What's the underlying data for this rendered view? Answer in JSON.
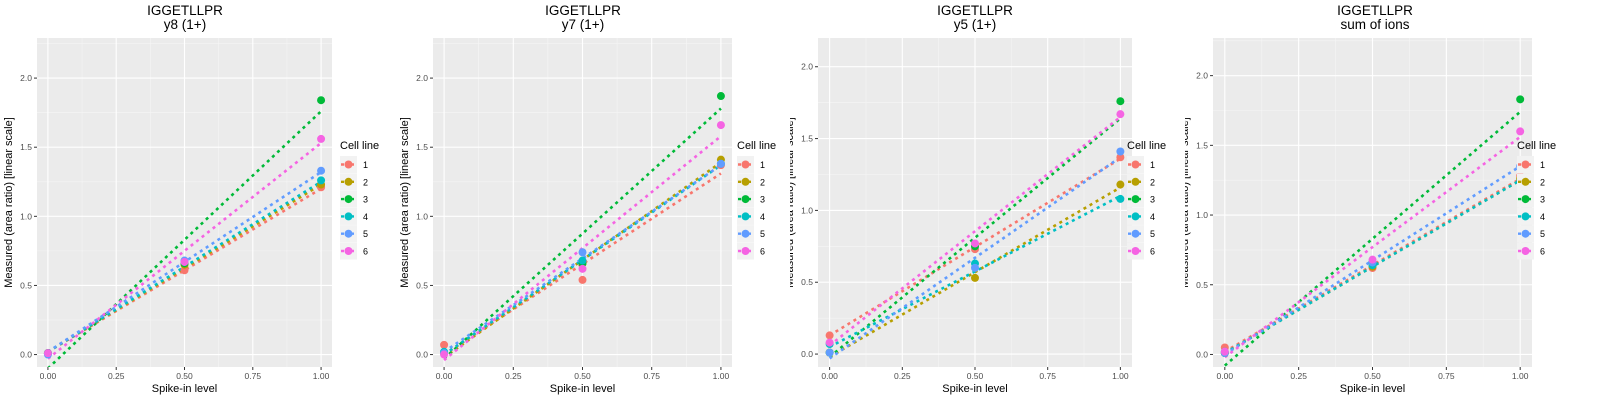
{
  "colors": {
    "panel_bg": "#EBEBEB",
    "grid_major": "#FFFFFF",
    "grid_minor": "#F5F5F5",
    "series": [
      "#F8766D",
      "#B79F00",
      "#00BA38",
      "#00BFC4",
      "#619CFF",
      "#F564E3"
    ]
  },
  "chart_data": [
    {
      "type": "scatter",
      "title": "IGGETLLPR",
      "subtitle": "y8 (1+)",
      "xlabel": "Spike-in level",
      "ylabel": "Measured (area ratio) [linear scale]",
      "xlim": [
        -0.04,
        1.04
      ],
      "ylim": [
        -0.09,
        2.29
      ],
      "xticks": [
        0,
        0.25,
        0.5,
        0.75,
        1
      ],
      "xtick_labels": [
        "0.00",
        "0.25",
        "0.50",
        "0.75",
        "1.00"
      ],
      "yticks": [
        0,
        0.5,
        1,
        1.5,
        2
      ],
      "ytick_labels": [
        "0.0",
        "0.5",
        "1.0",
        "1.5",
        "2.0"
      ],
      "grid": true,
      "legend_title": "Cell line",
      "legend_position": "right",
      "x": [
        0,
        0.5,
        1
      ],
      "series": [
        {
          "name": "1",
          "values": [
            0.01,
            0.61,
            1.21
          ],
          "fit": [
            0.02,
            1.2
          ]
        },
        {
          "name": "2",
          "values": [
            0.01,
            0.65,
            1.23
          ],
          "fit": [
            0.02,
            1.23
          ]
        },
        {
          "name": "3",
          "values": [
            0.01,
            0.66,
            1.84
          ],
          "fit": [
            -0.1,
            1.76
          ]
        },
        {
          "name": "4",
          "values": [
            0.01,
            0.67,
            1.26
          ],
          "fit": [
            0.02,
            1.25
          ]
        },
        {
          "name": "5",
          "values": [
            0.0,
            0.68,
            1.33
          ],
          "fit": [
            0.02,
            1.32
          ]
        },
        {
          "name": "6",
          "values": [
            0.01,
            0.67,
            1.56
          ],
          "fit": [
            -0.03,
            1.53
          ]
        }
      ]
    },
    {
      "type": "scatter",
      "title": "IGGETLLPR",
      "subtitle": "y7 (1+)",
      "xlabel": "Spike-in level",
      "ylabel": "Measured (area ratio) [linear scale]",
      "xlim": [
        -0.04,
        1.04
      ],
      "ylim": [
        -0.09,
        2.29
      ],
      "xticks": [
        0,
        0.25,
        0.5,
        0.75,
        1
      ],
      "xtick_labels": [
        "0.00",
        "0.25",
        "0.50",
        "0.75",
        "1.00"
      ],
      "yticks": [
        0,
        0.5,
        1,
        1.5,
        2
      ],
      "ytick_labels": [
        "0.0",
        "0.5",
        "1.0",
        "1.5",
        "2.0"
      ],
      "grid": true,
      "legend_title": "Cell line",
      "legend_position": "right",
      "x": [
        0,
        0.5,
        1
      ],
      "series": [
        {
          "name": "1",
          "values": [
            0.07,
            0.54,
            1.37
          ],
          "fit": [
            0.0,
            1.31
          ]
        },
        {
          "name": "2",
          "values": [
            0.01,
            0.66,
            1.41
          ],
          "fit": [
            -0.02,
            1.39
          ]
        },
        {
          "name": "3",
          "values": [
            0.01,
            0.66,
            1.87
          ],
          "fit": [
            -0.03,
            1.78
          ]
        },
        {
          "name": "4",
          "values": [
            0.02,
            0.68,
            1.38
          ],
          "fit": [
            0.0,
            1.37
          ]
        },
        {
          "name": "5",
          "values": [
            0.01,
            0.74,
            1.38
          ],
          "fit": [
            0.02,
            1.37
          ]
        },
        {
          "name": "6",
          "values": [
            0.0,
            0.62,
            1.66
          ],
          "fit": [
            -0.04,
            1.58
          ]
        }
      ]
    },
    {
      "type": "scatter",
      "title": "IGGETLLPR",
      "subtitle": "y5 (1+)",
      "xlabel": "Spike-in level",
      "ylabel": "Measured (area ratio) [linear scale]",
      "xlim": [
        -0.04,
        1.04
      ],
      "ylim": [
        -0.09,
        2.2
      ],
      "xticks": [
        0,
        0.25,
        0.5,
        0.75,
        1
      ],
      "xtick_labels": [
        "0.00",
        "0.25",
        "0.50",
        "0.75",
        "1.00"
      ],
      "yticks": [
        0,
        0.5,
        1,
        1.5,
        2
      ],
      "ytick_labels": [
        "0.0",
        "0.5",
        "1.0",
        "1.5",
        "2.0"
      ],
      "grid": true,
      "legend_title": "Cell line",
      "legend_position": "right",
      "x": [
        0,
        0.5,
        1
      ],
      "series": [
        {
          "name": "1",
          "values": [
            0.13,
            0.73,
            1.37
          ],
          "fit": [
            0.13,
            1.36
          ]
        },
        {
          "name": "2",
          "values": [
            0.01,
            0.53,
            1.18
          ],
          "fit": [
            -0.02,
            1.16
          ]
        },
        {
          "name": "3",
          "values": [
            0.01,
            0.75,
            1.76
          ],
          "fit": [
            -0.02,
            1.64
          ]
        },
        {
          "name": "4",
          "values": [
            0.07,
            0.63,
            1.08
          ],
          "fit": [
            0.05,
            1.1
          ]
        },
        {
          "name": "5",
          "values": [
            0.01,
            0.6,
            1.41
          ],
          "fit": [
            -0.03,
            1.37
          ]
        },
        {
          "name": "6",
          "values": [
            0.08,
            0.77,
            1.67
          ],
          "fit": [
            0.06,
            1.65
          ]
        }
      ]
    },
    {
      "type": "scatter",
      "title": "IGGETLLPR",
      "subtitle": "sum of ions",
      "xlabel": "Spike-in level",
      "ylabel": "Measured (area ratio) [linear scale]",
      "xlim": [
        -0.04,
        1.04
      ],
      "ylim": [
        -0.09,
        2.27
      ],
      "xticks": [
        0,
        0.25,
        0.5,
        0.75,
        1
      ],
      "xtick_labels": [
        "0.00",
        "0.25",
        "0.50",
        "0.75",
        "1.00"
      ],
      "yticks": [
        0,
        0.5,
        1,
        1.5,
        2
      ],
      "ytick_labels": [
        "0.0",
        "0.5",
        "1.0",
        "1.5",
        "2.0"
      ],
      "grid": true,
      "legend_title": "Cell line",
      "legend_position": "right",
      "x": [
        0,
        0.5,
        1
      ],
      "series": [
        {
          "name": "1",
          "values": [
            0.05,
            0.62,
            1.28
          ],
          "fit": [
            0.02,
            1.26
          ]
        },
        {
          "name": "2",
          "values": [
            0.01,
            0.63,
            1.26
          ],
          "fit": [
            0.01,
            1.25
          ]
        },
        {
          "name": "3",
          "values": [
            0.01,
            0.66,
            1.83
          ],
          "fit": [
            -0.08,
            1.74
          ]
        },
        {
          "name": "4",
          "values": [
            0.02,
            0.64,
            1.24
          ],
          "fit": [
            0.01,
            1.25
          ]
        },
        {
          "name": "5",
          "values": [
            0.01,
            0.66,
            1.35
          ],
          "fit": [
            0.0,
            1.35
          ]
        },
        {
          "name": "6",
          "values": [
            0.02,
            0.68,
            1.6
          ],
          "fit": [
            -0.02,
            1.56
          ]
        }
      ]
    }
  ]
}
